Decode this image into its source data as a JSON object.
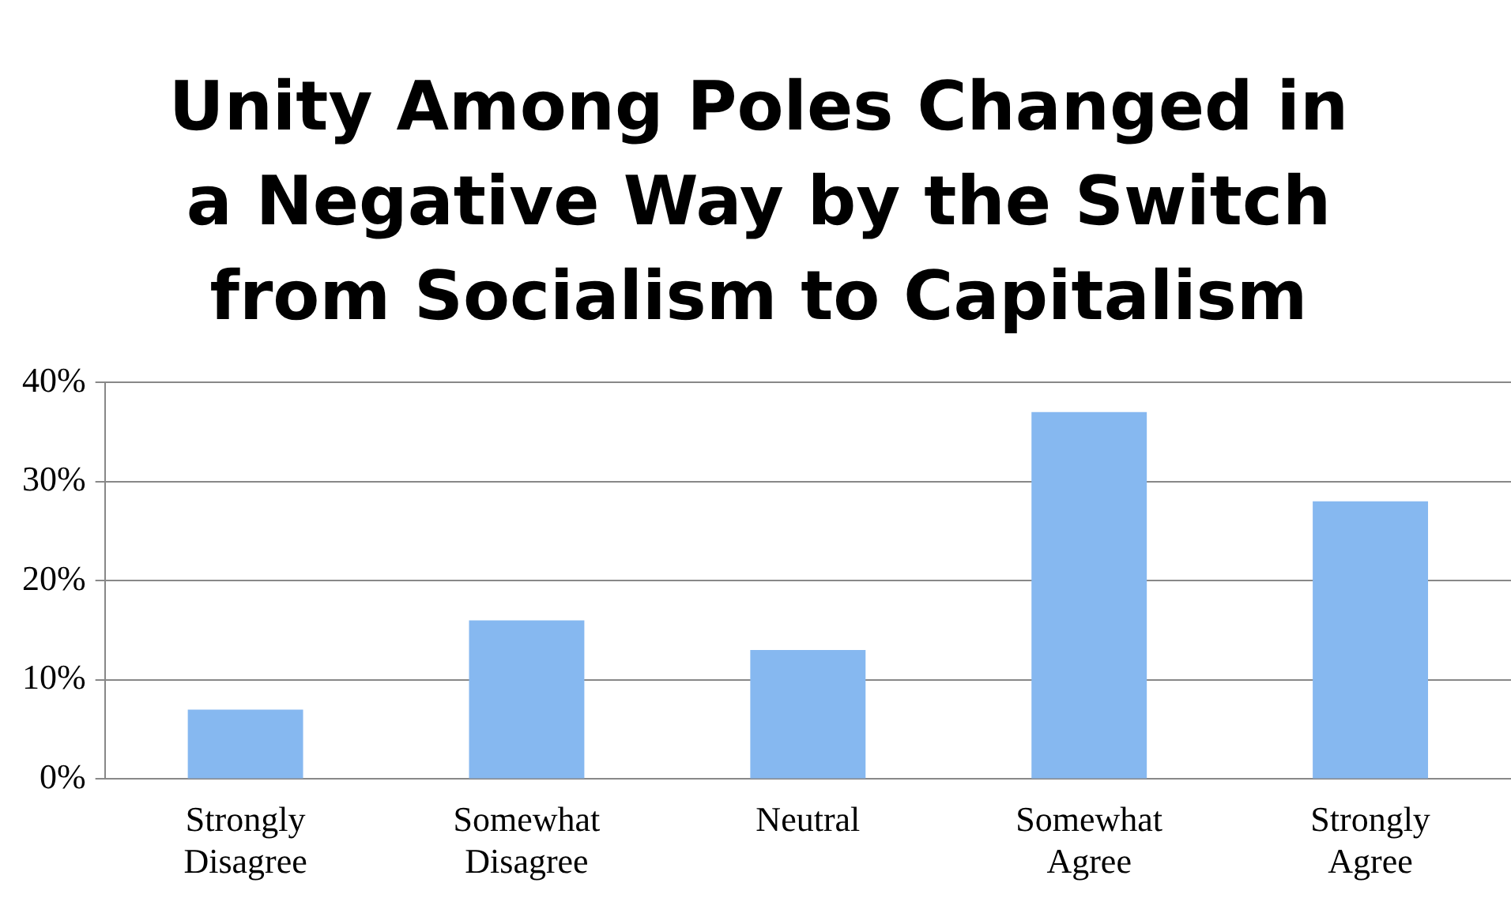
{
  "chart_data": {
    "type": "bar",
    "title": "Unity Among Poles Changed in a Negative Way by the Switch from Socialism to Capitalism",
    "categories": [
      "Strongly Disagree",
      "Somewhat Disagree",
      "Neutral",
      "Somewhat Agree",
      "Strongly Agree"
    ],
    "values": [
      7,
      16,
      13,
      37,
      28
    ],
    "color": "#86b8f0",
    "ylim": [
      0,
      40
    ],
    "yticks": [
      {
        "value": 0,
        "label": "0%"
      },
      {
        "value": 10,
        "label": "10%"
      },
      {
        "value": 20,
        "label": "20%"
      },
      {
        "value": 30,
        "label": "30%"
      },
      {
        "value": 40,
        "label": "40%"
      }
    ],
    "grid": "y",
    "legend": false
  }
}
